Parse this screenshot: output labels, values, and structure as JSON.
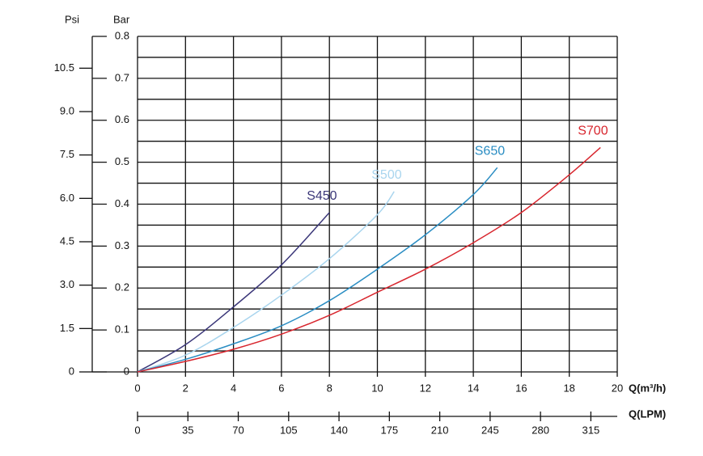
{
  "chart_data": {
    "type": "line",
    "y_label": "Bar",
    "y2_label": "Psi",
    "x_label": "Q(m³/h)",
    "x2_label": "Q(LPM)",
    "xlim": [
      0,
      20
    ],
    "xticks": [
      0,
      2,
      4,
      6,
      8,
      10,
      12,
      14,
      16,
      18,
      20
    ],
    "x2lim": [
      0,
      333.33
    ],
    "x2ticks": [
      0,
      35,
      70,
      105,
      140,
      175,
      210,
      245,
      280,
      315
    ],
    "ylim": [
      0,
      0.8
    ],
    "yticks": [
      0,
      {
        "value": 0.05,
        "label": null
      },
      0.1,
      {
        "value": 0.15,
        "label": null
      },
      0.2,
      {
        "value": 0.25,
        "label": null
      },
      0.3,
      {
        "value": 0.35,
        "label": null
      },
      0.4,
      {
        "value": 0.45,
        "label": null
      },
      0.5,
      {
        "value": 0.55,
        "label": null
      },
      0.6,
      {
        "value": 0.65,
        "label": null
      },
      0.7,
      {
        "value": 0.75,
        "label": null
      },
      0.8
    ],
    "y2lim": [
      0,
      11.6
    ],
    "y2ticks": [
      0,
      1.5,
      {
        "value": 3,
        "label": "3.0"
      },
      4.5,
      {
        "value": 6,
        "label": "6.0"
      },
      7.5,
      {
        "value": 9,
        "label": "9.0"
      },
      10.5
    ],
    "grid": true,
    "series": [
      {
        "name": "S450",
        "color": "#3b3779",
        "x": [
          0,
          2,
          4,
          6,
          8
        ],
        "values": [
          0,
          0.065,
          0.155,
          0.255,
          0.38
        ]
      },
      {
        "name": "S500",
        "color": "#a9d5ee",
        "x": [
          0,
          2,
          4,
          6,
          8,
          10,
          10.7
        ],
        "values": [
          0,
          0.04,
          0.106,
          0.183,
          0.27,
          0.375,
          0.43
        ]
      },
      {
        "name": "S650",
        "color": "#2a8dc3",
        "x": [
          0,
          2,
          4,
          6,
          8,
          10,
          12,
          14,
          15
        ],
        "values": [
          0,
          0.03,
          0.067,
          0.11,
          0.17,
          0.245,
          0.327,
          0.423,
          0.487
        ]
      },
      {
        "name": "S700",
        "color": "#d8262e",
        "x": [
          0,
          2,
          4,
          6,
          8,
          10,
          12,
          14,
          16,
          18,
          19.3
        ],
        "values": [
          0,
          0.025,
          0.054,
          0.09,
          0.135,
          0.19,
          0.245,
          0.308,
          0.38,
          0.47,
          0.535
        ]
      }
    ]
  }
}
